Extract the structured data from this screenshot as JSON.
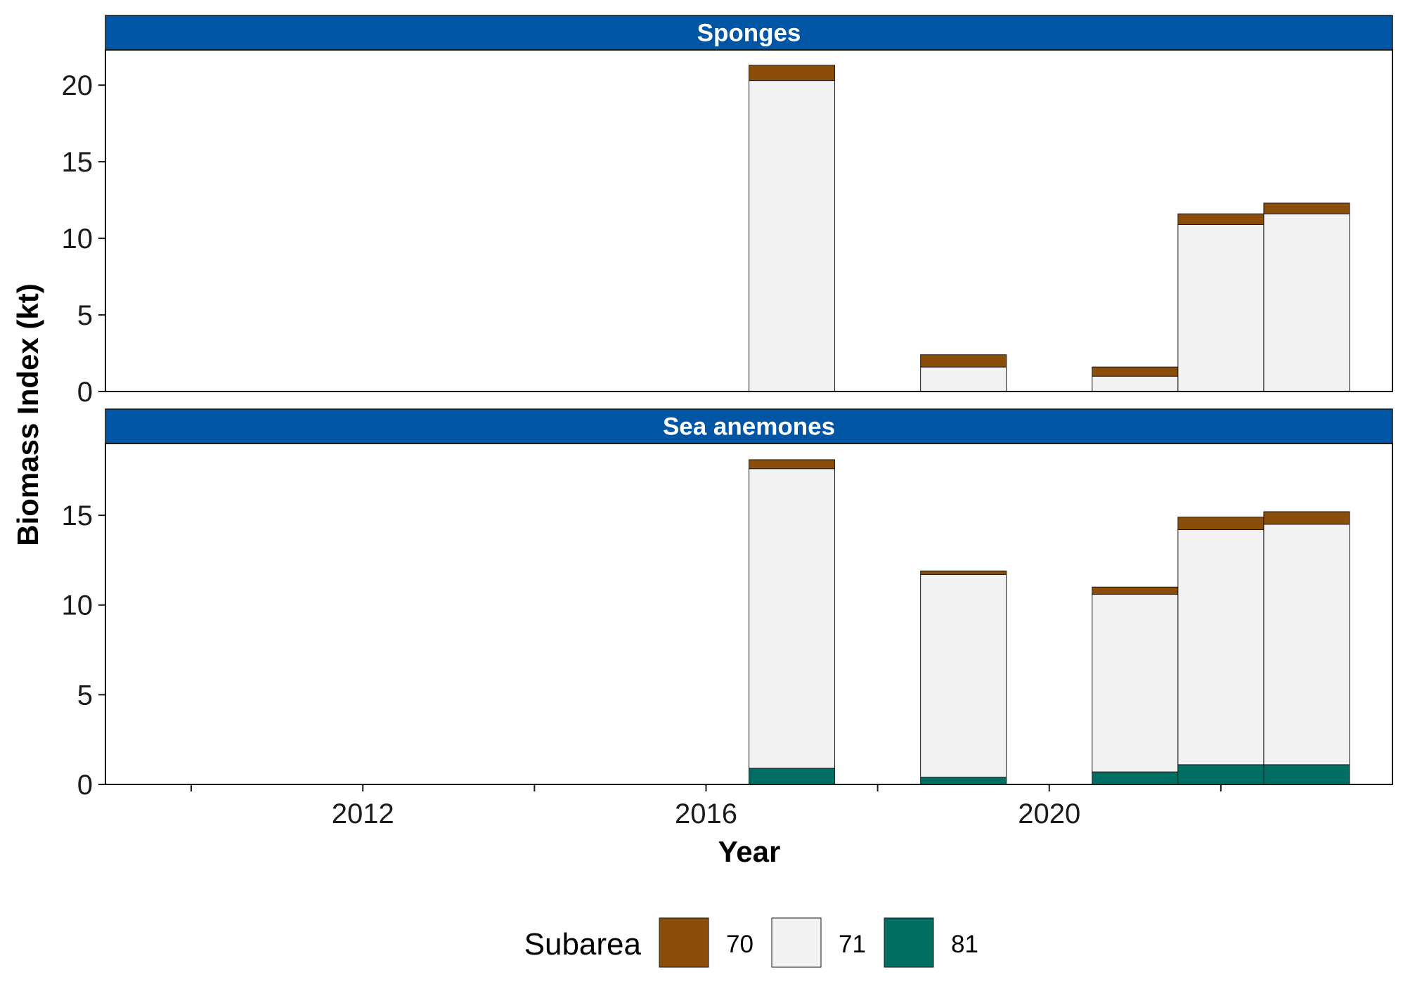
{
  "chart_data": {
    "type": "bar",
    "stacked": true,
    "xlabel": "Year",
    "ylabel": "Biomass Index (kt)",
    "xlim": [
      2009,
      2024
    ],
    "x_ticks": [
      2012,
      2016,
      2020
    ],
    "grid": false,
    "legend": {
      "title": "Subarea",
      "placement": "bottom",
      "entries": [
        {
          "name": "70",
          "color": "#8B4E0A"
        },
        {
          "name": "71",
          "color": "#F2F2F2"
        },
        {
          "name": "81",
          "color": "#006E63"
        }
      ]
    },
    "strip_color": "#0055A5",
    "panels": [
      {
        "title": "Sponges",
        "ylim": [
          0,
          22.3
        ],
        "y_ticks": [
          0,
          5,
          10,
          15,
          20
        ],
        "x": [
          2017,
          2019,
          2021,
          2022,
          2023
        ],
        "series": [
          {
            "name": "81",
            "values": [
              0,
              0,
              0,
              0,
              0
            ]
          },
          {
            "name": "71",
            "values": [
              20.3,
              1.6,
              1.0,
              10.9,
              11.6
            ]
          },
          {
            "name": "70",
            "values": [
              1.0,
              0.8,
              0.6,
              0.7,
              0.7
            ]
          }
        ]
      },
      {
        "title": "Sea anemones",
        "ylim": [
          0,
          19.0
        ],
        "y_ticks": [
          0,
          5,
          10,
          15
        ],
        "x": [
          2017,
          2019,
          2021,
          2022,
          2023
        ],
        "series": [
          {
            "name": "81",
            "values": [
              0.9,
              0.4,
              0.7,
              1.1,
              1.1
            ]
          },
          {
            "name": "71",
            "values": [
              16.7,
              11.3,
              9.9,
              13.1,
              13.4
            ]
          },
          {
            "name": "70",
            "values": [
              0.5,
              0.2,
              0.4,
              0.7,
              0.7
            ]
          }
        ]
      }
    ]
  }
}
